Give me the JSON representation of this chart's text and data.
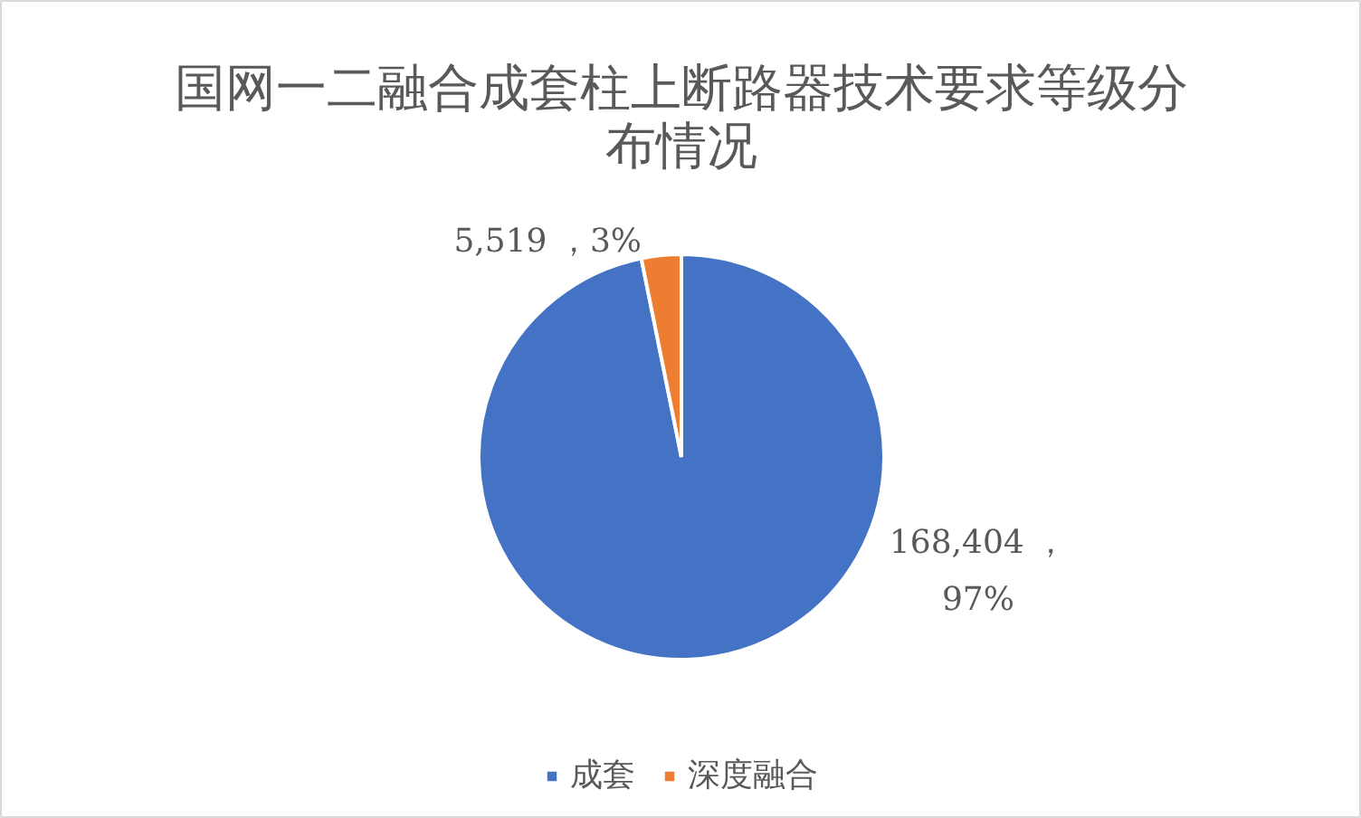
{
  "chart_data": {
    "type": "pie",
    "title": "国网一二融合成套柱上断路器技术要求等级分布情况",
    "categories": [
      "成套",
      "深度融合"
    ],
    "values": [
      168404,
      5519
    ],
    "colors": [
      "#4472c4",
      "#ed7d31"
    ],
    "value_labels": [
      "168,404 ，\n97%",
      "5,519 ，3%"
    ],
    "legend": "bottom"
  }
}
